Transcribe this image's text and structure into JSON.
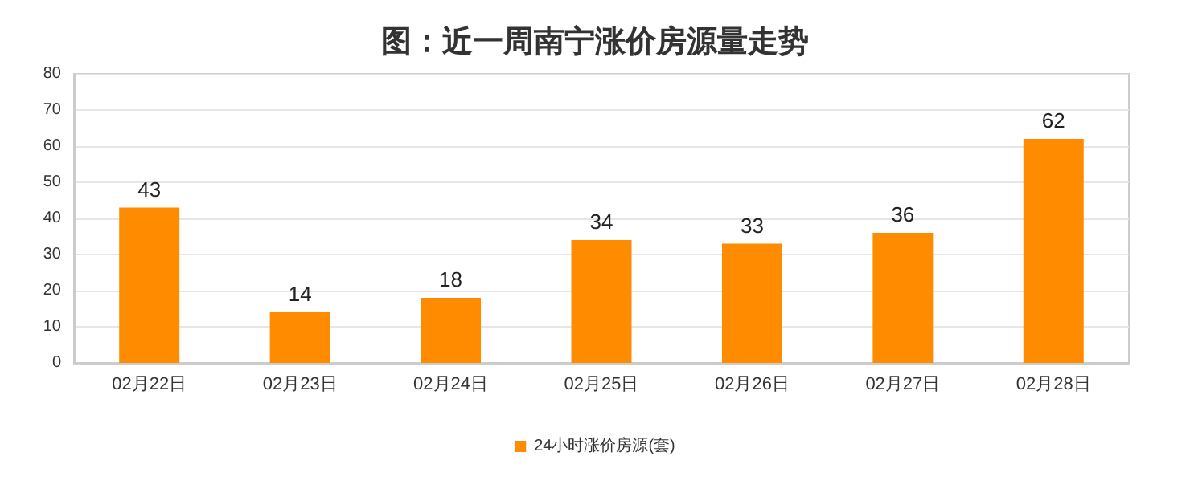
{
  "chart_data": {
    "type": "bar",
    "title": "图：近一周南宁涨价房源量走势",
    "categories": [
      "02月22日",
      "02月23日",
      "02月24日",
      "02月25日",
      "02月26日",
      "02月27日",
      "02月28日"
    ],
    "series": [
      {
        "name": "24小时涨价房源(套)",
        "color": "#ff8c00",
        "values": [
          43,
          14,
          18,
          34,
          33,
          36,
          62
        ]
      }
    ],
    "ylim": [
      0,
      80
    ],
    "yticks": [
      0,
      10,
      20,
      30,
      40,
      50,
      60,
      70,
      80
    ],
    "grid": "y",
    "legend": "bottom",
    "data_labels": true
  }
}
